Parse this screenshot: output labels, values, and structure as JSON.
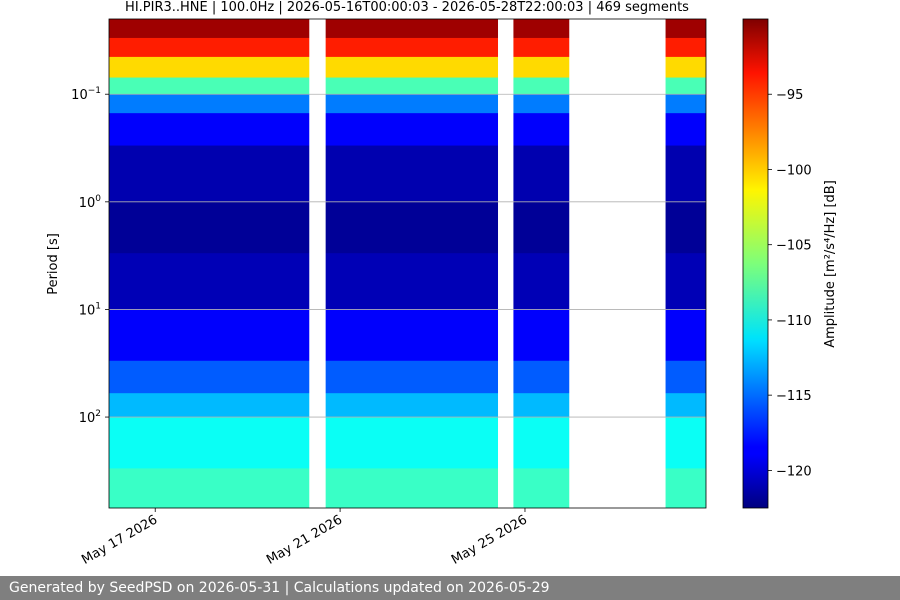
{
  "chart_data": {
    "type": "heatmap",
    "title": "HI.PIR3..HNE | 100.0Hz | 2026-05-16T00:00:03 - 2026-05-28T22:00:03 | 469 segments",
    "ylabel": "Period [s]",
    "yscale": "log",
    "y_ticks": [
      {
        "value": 0.1,
        "label_base": "10",
        "label_exp": "−1"
      },
      {
        "value": 1,
        "label_base": "10",
        "label_exp": "0"
      },
      {
        "value": 10,
        "label_base": "10",
        "label_exp": "1"
      },
      {
        "value": 100,
        "label_base": "10",
        "label_exp": "2"
      }
    ],
    "ylim": [
      0.02,
      700
    ],
    "xlim": [
      "2026-05-16T00:00:03",
      "2026-05-28T22:00:03"
    ],
    "x_ticks": [
      {
        "date": "2026-05-17",
        "label": "May 17 2026"
      },
      {
        "date": "2026-05-21",
        "label": "May 21 2026"
      },
      {
        "date": "2026-05-25",
        "label": "May 25 2026"
      }
    ],
    "grid": true,
    "data_gaps": [
      {
        "start": "2026-05-20T08:00:00",
        "end": "2026-05-20T16:30:00"
      },
      {
        "start": "2026-05-24T10:00:00",
        "end": "2026-05-24T18:00:00"
      },
      {
        "start": "2026-05-25T23:00:00",
        "end": "2026-05-28T01:00:00"
      }
    ],
    "colorbar": {
      "label": "Amplitude [m²/s⁴/Hz] [dB]",
      "range": [
        -122.5,
        -90
      ],
      "ticks": [
        -95,
        -100,
        -105,
        -110,
        -115,
        -120
      ],
      "tick_labels": [
        "−95",
        "−100",
        "−105",
        "−110",
        "−115",
        "−120"
      ],
      "colormap": "jet"
    },
    "amplitude_profile": [
      {
        "period": 0.02,
        "db": -90
      },
      {
        "period": 0.03,
        "db": -92
      },
      {
        "period": 0.045,
        "db": -98
      },
      {
        "period": 0.07,
        "db": -104
      },
      {
        "period": 0.1,
        "db": -112
      },
      {
        "period": 0.15,
        "db": -117
      },
      {
        "period": 0.3,
        "db": -120
      },
      {
        "period": 1,
        "db": -122
      },
      {
        "period": 3,
        "db": -121.5
      },
      {
        "period": 10,
        "db": -120
      },
      {
        "period": 30,
        "db": -117
      },
      {
        "period": 60,
        "db": -114
      },
      {
        "period": 100,
        "db": -111
      },
      {
        "period": 300,
        "db": -109
      },
      {
        "period": 700,
        "db": -108
      }
    ]
  },
  "footer": {
    "text": "Generated by SeedPSD on 2026-05-31 | Calculations updated on 2026-05-29"
  }
}
